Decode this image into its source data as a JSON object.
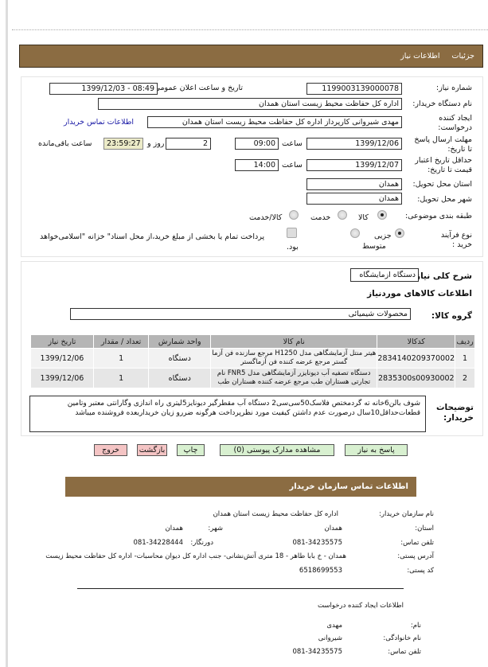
{
  "nav": {
    "tabs": [
      "جزئیات",
      "اطلاعات نیاز"
    ]
  },
  "form": {
    "need_number_label": "شماره نیاز:",
    "need_number": "1199003139000078",
    "announce_label": "تاریخ و ساعت اعلان عمومی:",
    "announce_value": "1399/12/03 - 08:49",
    "buyer_label": "نام دستگاه خریدار:",
    "buyer_value": "اداره کل حفاظت محیط زیست استان همدان",
    "creator_label": "ایجاد کننده درخواست:",
    "creator_value": "مهدی شیروانی  کارپرداز اداره کل حفاظت محیط زیست استان همدان",
    "contact_link": "اطلاعات تماس خریدار",
    "deadline_label": "مهلت ارسال پاسخ تا تاریخ:",
    "deadline_date": "1399/12/06",
    "time_label": "ساعت",
    "deadline_time": "09:00",
    "days": "2",
    "days_label": "روز و",
    "remaining": "23:59:27",
    "remaining_label": "ساعت باقی‌مانده",
    "validity_label": "حداقل تاریخ اعتبار قیمت تا تاریخ:",
    "validity_date": "1399/12/07",
    "validity_time": "14:00",
    "province_label": "استان محل تحویل:",
    "province": "همدان",
    "city_label": "شهر محل تحویل:",
    "city": "همدان",
    "category_label": "طبقه بندی موضوعی:",
    "category_options": [
      "کالا",
      "خدمت",
      "کالا/خدمت"
    ],
    "category_selected": "کالا",
    "process_label": "نوع فرآیند خرید :",
    "process_options": [
      "جزیی",
      "متوسط"
    ],
    "process_selected": "جزیی",
    "treasury_text": "پرداخت تمام یا بخشی از مبلغ خرید،از محل اسناد\" خزانه \"اسلامی‌خواهد",
    "treasury_text2": "بود."
  },
  "items": {
    "summary_label": "شرح کلی نیاز:",
    "summary": "دستگاه ازمایشگاه",
    "section_title": "اطلاعات کالاهای موردنیاز",
    "group_label": "گروه کالا:",
    "group": "محصولات شیمیائی",
    "columns": [
      "ردیف",
      "کدکالا",
      "نام کالا",
      "واحد شمارش",
      "تعداد / مقدار",
      "تاریخ نیاز"
    ],
    "rows": [
      {
        "n": "1",
        "code": "2834140209370002",
        "name": "هیتر منتل آزمایشگاهی مدل H1250 مرجع سازنده فن آزما گستر مرجع عرضه کننده فن آزماگستر",
        "unit": "دستگاه",
        "qty": "1",
        "date": "1399/12/06"
      },
      {
        "n": "2",
        "code": "2835300s00930002",
        "name": "دستگاه تصفیه آب دیونایزر آزمایشگاهی مدل FNR5 نام تجارتی هستاران طب مرجع عرضه کننده هستاران طب",
        "unit": "دستگاه",
        "qty": "1",
        "date": "1399/12/06"
      }
    ],
    "notes_label": "توضیحات خریدار:",
    "notes": "شوف بالن6خانه ته گردمختص فلاسک50سی‌سی2 دستگاه آب مقطرگیر دیونایز5لیتری راه اندازی وگارانتی معتبر وتامین قطعات‌حداقل10سال درصورت عدم داشتن کیفیت مورد نظرپرداخت هرگونه ضررو زیان خریداربعده فروشنده میباشد"
  },
  "buttons": {
    "reply": "پاسخ به نیاز",
    "attachments": "مشاهده مدارک پیوستی (0)",
    "print": "چاپ",
    "back": "بازگشت",
    "exit": "خروج"
  },
  "contact": {
    "title": "اطلاعات تماس سازمان خریدار",
    "org_label": "نام سازمان خریدار:",
    "org": "اداره کل حفاظت محیط زیست استان همدان",
    "province_label": "استان:",
    "province": "همدان",
    "city_label": "شهر:",
    "city": "همدان",
    "phone_label": "تلفن تماس:",
    "phone": "081-34235575",
    "fax_label": "دورنگار:",
    "fax": "081-34228444",
    "address_label": "آدرس پستی:",
    "address": "همدان - خ بابا طاهر - 18 متری آتش‌نشانی- جنب اداره کل دیوان محاسبات- اداره کل حفاظت محیط زیست",
    "postal_label": "کد پستی:",
    "postal": "6518699553",
    "creator_title": "اطلاعات ایجاد کننده درخواست",
    "name_label": "نام:",
    "name": "مهدی",
    "family_label": "نام خانوادگی:",
    "family": "شیروانی",
    "cphone_label": "تلفن تماس:",
    "cphone": "081-34235575"
  },
  "colors": {
    "bar": "#8b6c42",
    "green_button": "#d8f0d0",
    "red_button": "#f4c4c4",
    "link": "#1a1aa6"
  }
}
